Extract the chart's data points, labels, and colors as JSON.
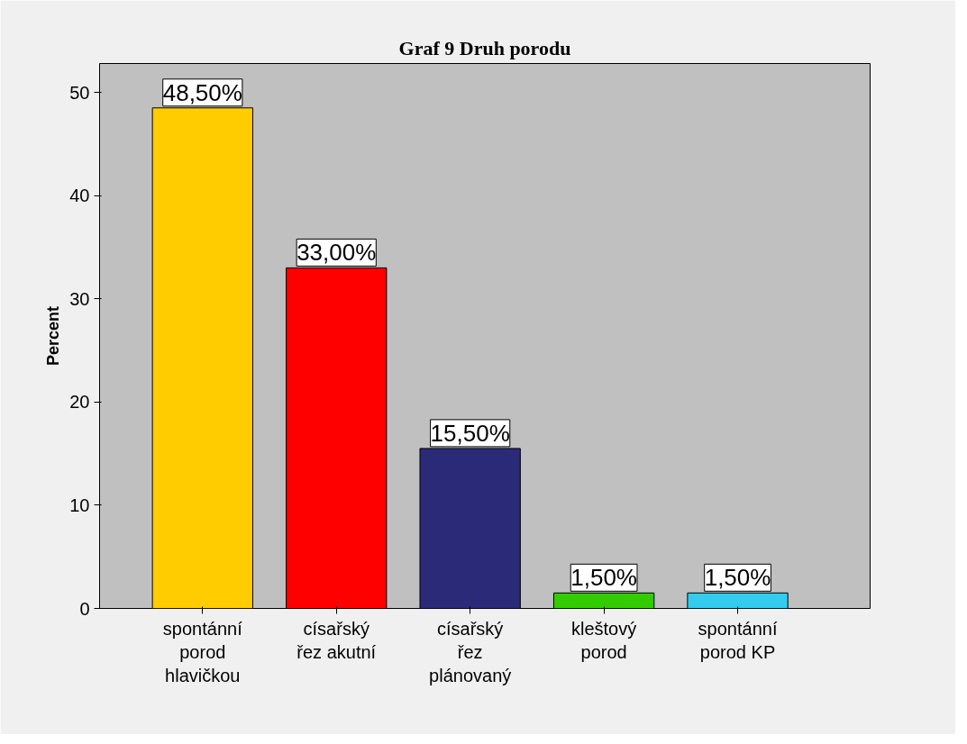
{
  "chart_data": {
    "type": "bar",
    "title": "Graf 9 Druh porodu",
    "ylabel": "Percent",
    "categories": [
      "spontánní porod hlavičkou",
      "císařský řez akutní",
      "císařský řez plánovaný",
      "kleštový porod",
      "spontánní porod KP"
    ],
    "values": [
      48.5,
      33.0,
      15.5,
      1.5,
      1.5
    ],
    "colors": [
      "#ffcc00",
      "#ff0000",
      "#2a2a78",
      "#33cc00",
      "#33ccee"
    ],
    "value_labels": [
      "48,50%",
      "33,00%",
      "15,50%",
      "1,50%",
      "1,50%"
    ],
    "ylim": [
      0,
      52.8
    ],
    "yticks": [
      0,
      10,
      20,
      30,
      40,
      50
    ],
    "grid": false
  }
}
